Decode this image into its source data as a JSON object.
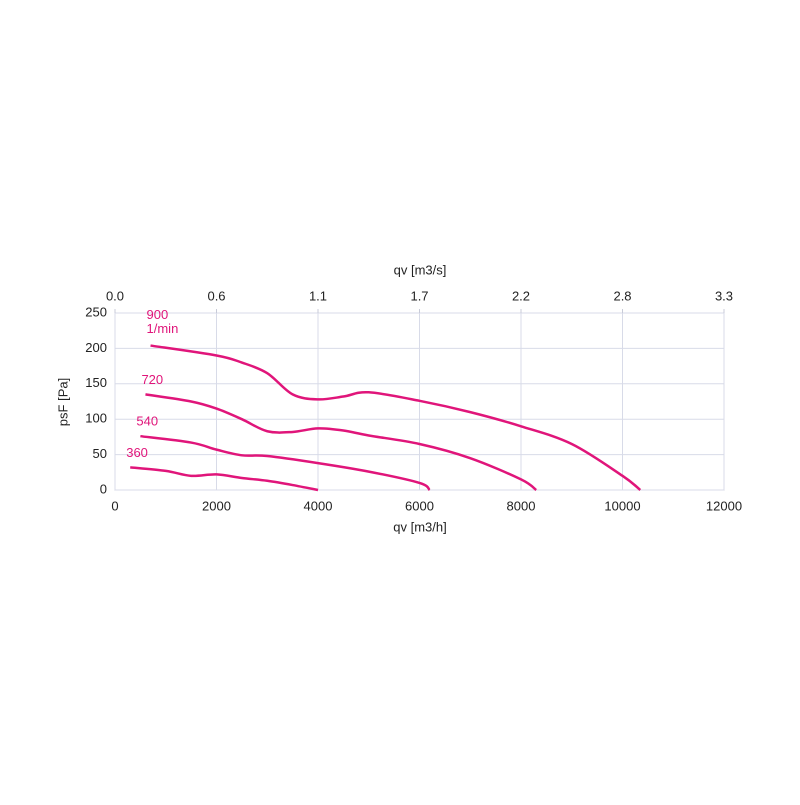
{
  "chart_data": {
    "type": "line",
    "xlabel": "qv [m3/h]",
    "ylabel": "psF [Pa]",
    "x2label": "qv [m3/s]",
    "xlim": [
      0,
      12000
    ],
    "xticks": [
      0,
      2000,
      4000,
      6000,
      8000,
      10000,
      12000
    ],
    "ylim": [
      0,
      250
    ],
    "yticks": [
      0,
      50,
      100,
      150,
      200,
      250
    ],
    "x2lim": [
      0,
      3.3333
    ],
    "x2ticks": [
      {
        "value": 0,
        "label": "0.0"
      },
      {
        "value": 0.5556,
        "label": "0.6"
      },
      {
        "value": 1.1111,
        "label": "1.1"
      },
      {
        "value": 1.6667,
        "label": "1.7"
      },
      {
        "value": 2.2222,
        "label": "2.2"
      },
      {
        "value": 2.7778,
        "label": "2.8"
      },
      {
        "value": 3.3333,
        "label": "3.3"
      }
    ],
    "grid": true,
    "annotation": "1/min",
    "series": [
      {
        "name": "900",
        "color": "#e0157a",
        "x": [
          700,
          2000,
          2500,
          3000,
          3500,
          4000,
          4500,
          5000,
          6000,
          7000,
          8000,
          9000,
          10000,
          10350
        ],
        "values": [
          204,
          190,
          180,
          165,
          135,
          128,
          132,
          138,
          126,
          110,
          90,
          65,
          20,
          0
        ]
      },
      {
        "name": "720",
        "color": "#e0157a",
        "x": [
          600,
          1500,
          2000,
          2500,
          3000,
          3500,
          4000,
          4500,
          5000,
          6000,
          7000,
          8000,
          8300
        ],
        "values": [
          135,
          125,
          115,
          100,
          83,
          82,
          87,
          84,
          77,
          65,
          45,
          15,
          0
        ]
      },
      {
        "name": "540",
        "color": "#e0157a",
        "x": [
          500,
          1500,
          2000,
          2500,
          3000,
          4000,
          5000,
          6000,
          6200
        ],
        "values": [
          76,
          67,
          57,
          49,
          48,
          38,
          26,
          10,
          0
        ]
      },
      {
        "name": "360",
        "color": "#e0157a",
        "x": [
          300,
          1000,
          1500,
          2000,
          2500,
          3000,
          3500,
          4000
        ],
        "values": [
          32,
          27,
          20,
          22,
          17,
          13,
          7,
          0
        ]
      }
    ]
  }
}
